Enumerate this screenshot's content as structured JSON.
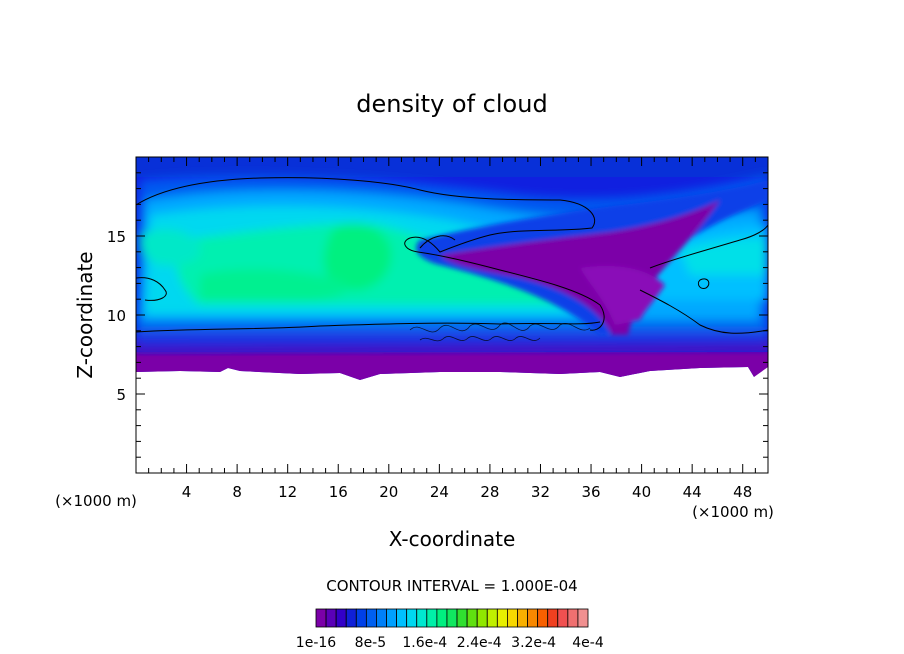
{
  "chart_data": {
    "type": "heatmap",
    "title": "density of cloud",
    "xlabel": "X-coordinate",
    "ylabel": "Z-coordinate",
    "x_unit": "(×1000 m)",
    "x_unit_right": "(×1000 m)",
    "xlim": [
      0,
      50
    ],
    "ylim": [
      0,
      20
    ],
    "x_ticks": [
      4,
      8,
      12,
      16,
      20,
      24,
      28,
      32,
      36,
      40,
      44,
      48
    ],
    "y_ticks": [
      5,
      10,
      15
    ],
    "contour_interval_label": "CONTOUR INTERVAL = 1.000E-04",
    "colorbar": {
      "min": 1e-16,
      "max": 0.0004,
      "labels": [
        "1e-16",
        "8e-5",
        "1.6e-4",
        "2.4e-4",
        "3.2e-4",
        "4e-4"
      ],
      "colors": [
        "#7b00a8",
        "#5a00b8",
        "#3300c8",
        "#1020d8",
        "#0040e8",
        "#0060f0",
        "#0080f8",
        "#00a0ff",
        "#00c0ff",
        "#00d8f0",
        "#00e8d0",
        "#00f0a8",
        "#00f080",
        "#10e860",
        "#30e030",
        "#60e010",
        "#90e800",
        "#c0f000",
        "#e8f000",
        "#f8d800",
        "#f8b000",
        "#f88800",
        "#f86000",
        "#f04020",
        "#f05050",
        "#f07070",
        "#f09090"
      ]
    },
    "cloud_layer": {
      "base_z": 6.3,
      "top_z": 19.5,
      "core_region": {
        "x": [
          0,
          38
        ],
        "z": [
          10,
          17
        ]
      }
    }
  }
}
